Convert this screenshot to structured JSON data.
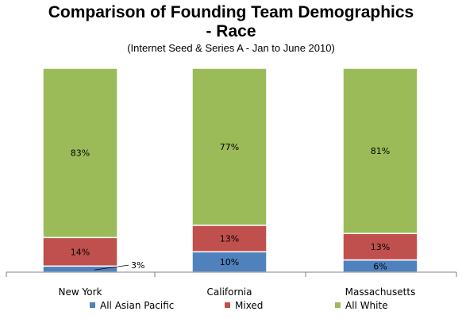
{
  "chart_data": {
    "type": "bar",
    "stacked": true,
    "title_line1": "Comparison of Founding Team Demographics",
    "title_line2": "- Race",
    "subtitle": "(Internet Seed & Series A - Jan to June 2010)",
    "categories": [
      "New York",
      "California",
      "Massachusetts"
    ],
    "series": [
      {
        "name": "All Asian Pacific",
        "color": "#4f81bd",
        "values": [
          3,
          10,
          6
        ],
        "labels": [
          "3%",
          "10%",
          "6%"
        ]
      },
      {
        "name": "Mixed",
        "color": "#c0504d",
        "values": [
          14,
          13,
          13
        ],
        "labels": [
          "14%",
          "13%",
          "13%"
        ]
      },
      {
        "name": "All White",
        "color": "#9bbb59",
        "values": [
          83,
          77,
          81
        ],
        "labels": [
          "83%",
          "77%",
          "81%"
        ]
      }
    ],
    "ylim": [
      0,
      100
    ],
    "grid": false,
    "legend_position": "bottom"
  }
}
